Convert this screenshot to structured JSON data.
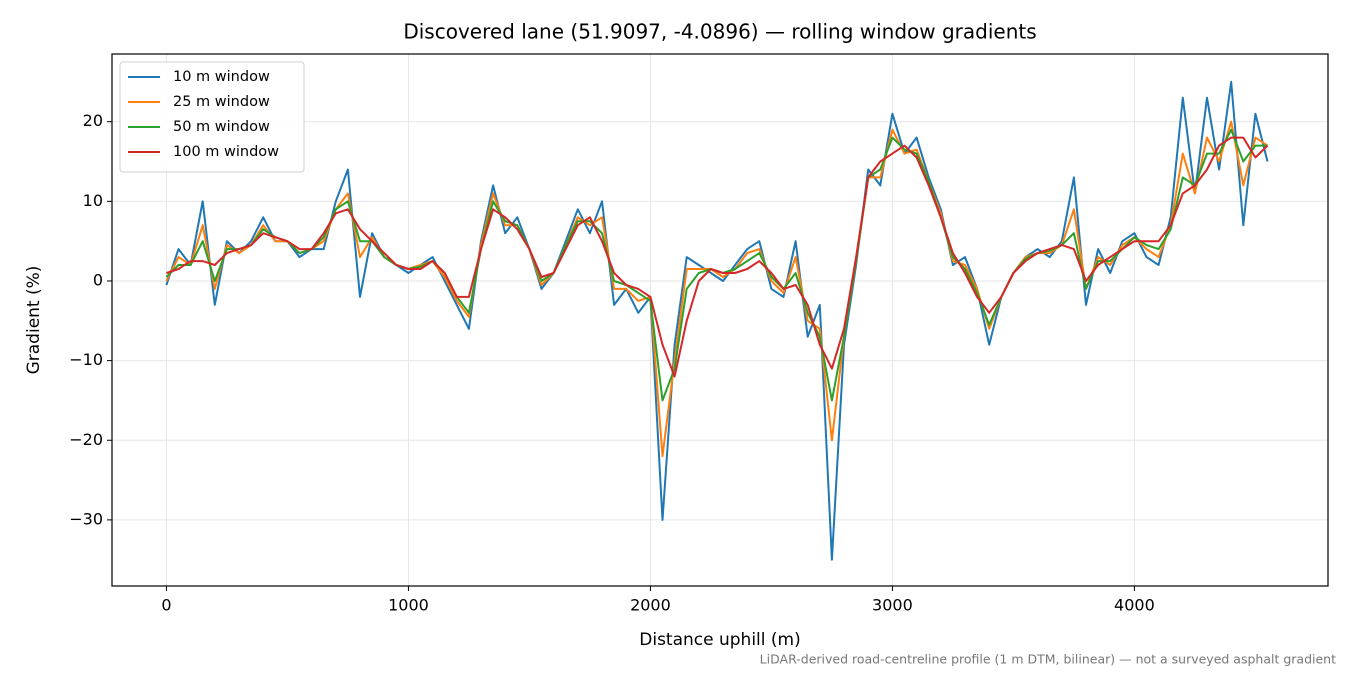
{
  "chart_data": {
    "type": "line",
    "title": "Discovered lane (51.9097, -4.0896) — rolling window gradients",
    "xlabel": "Distance uphill (m)",
    "ylabel": "Gradient (%)",
    "footnote": "LiDAR-derived road-centreline profile (1 m DTM, bilinear) — not a surveyed asphalt gradient",
    "x": [
      0,
      50,
      100,
      150,
      200,
      250,
      300,
      350,
      400,
      450,
      500,
      550,
      600,
      650,
      700,
      750,
      800,
      850,
      900,
      950,
      1000,
      1050,
      1100,
      1150,
      1200,
      1250,
      1300,
      1350,
      1400,
      1450,
      1500,
      1550,
      1600,
      1650,
      1700,
      1750,
      1800,
      1850,
      1900,
      1950,
      2000,
      2050,
      2100,
      2150,
      2200,
      2250,
      2300,
      2350,
      2400,
      2450,
      2500,
      2550,
      2600,
      2650,
      2700,
      2750,
      2800,
      2850,
      2900,
      2950,
      3000,
      3050,
      3100,
      3150,
      3200,
      3250,
      3300,
      3350,
      3400,
      3450,
      3500,
      3550,
      3600,
      3650,
      3700,
      3750,
      3800,
      3850,
      3900,
      3950,
      4000,
      4050,
      4100,
      4150,
      4200,
      4250,
      4300,
      4350,
      4400,
      4450,
      4500,
      4550
    ],
    "series": [
      {
        "name": "10 m window",
        "color": "#1f77b4",
        "values": [
          -0.5,
          4,
          2,
          10,
          -3,
          5,
          3.5,
          5,
          8,
          5,
          5,
          3,
          4,
          4,
          10,
          14,
          -2,
          6,
          3,
          2,
          1,
          2,
          3,
          0,
          -3,
          -6,
          5,
          12,
          6,
          8,
          4,
          -1,
          1,
          5,
          9,
          6,
          10,
          -3,
          -1,
          -4,
          -2,
          -30,
          -8,
          3,
          2,
          1,
          0,
          2,
          4,
          5,
          -1,
          -2,
          5,
          -7,
          -3,
          -35,
          -8,
          2,
          14,
          12,
          21,
          16,
          18,
          13,
          9,
          2,
          3,
          -1,
          -8,
          -2,
          1,
          3,
          4,
          3,
          5,
          13,
          -3,
          4,
          1,
          5,
          6,
          3,
          2,
          8,
          23,
          11,
          23,
          14,
          25,
          7,
          21,
          15
        ]
      },
      {
        "name": "25 m window",
        "color": "#ff7f0e",
        "values": [
          0,
          3,
          2,
          7,
          -1,
          4.5,
          3.5,
          4.5,
          7,
          5,
          5,
          3.5,
          4,
          5,
          9,
          11,
          3,
          5.5,
          3,
          2,
          1.5,
          2,
          2.5,
          0.5,
          -2.5,
          -4.5,
          4.5,
          11,
          7,
          7,
          4,
          -0.5,
          1,
          4.5,
          8,
          7,
          8,
          -1,
          -1,
          -2.5,
          -2,
          -22,
          -10,
          1.5,
          1.5,
          1.5,
          0.5,
          1.5,
          3.5,
          4,
          0,
          -1.5,
          3,
          -5,
          -6,
          -20,
          -7,
          2.5,
          13,
          13,
          19,
          16,
          16.5,
          12.5,
          8.5,
          2.5,
          2,
          -1,
          -6,
          -2,
          1,
          3,
          3.5,
          3.5,
          4.5,
          9,
          -1,
          3,
          2,
          4.5,
          5.5,
          4,
          3,
          7,
          16,
          11,
          18,
          15,
          20,
          12,
          18,
          17
        ]
      },
      {
        "name": "50 m window",
        "color": "#2ca02c",
        "values": [
          0.5,
          2,
          2,
          5,
          0,
          4,
          4,
          4.5,
          6.5,
          5.5,
          5,
          3.5,
          4,
          5.5,
          9,
          10,
          5,
          5,
          3,
          2,
          1.5,
          1.8,
          2.5,
          1,
          -2,
          -4,
          4,
          10,
          7.5,
          7,
          4,
          0,
          1,
          4.5,
          7.5,
          7.5,
          6,
          0,
          -0.5,
          -1.5,
          -2.5,
          -15,
          -11,
          -1,
          1,
          1.5,
          1,
          1.5,
          2.5,
          3.5,
          0.5,
          -1,
          1,
          -4,
          -7,
          -15,
          -7,
          2.5,
          13,
          14,
          18,
          16.5,
          16,
          12.5,
          8,
          3,
          1.5,
          -1.5,
          -5.5,
          -2,
          1,
          2.8,
          3.5,
          3.8,
          4.5,
          6,
          -1,
          2.5,
          2.5,
          4,
          5.5,
          4.5,
          4,
          6.5,
          13,
          12,
          16,
          16,
          19,
          15,
          17,
          17
        ]
      },
      {
        "name": "100 m window",
        "color": "#d62728",
        "values": [
          1,
          1.5,
          2.5,
          2.5,
          2,
          3.5,
          4,
          4.5,
          6,
          5.5,
          5,
          4,
          4,
          6,
          8.5,
          9,
          6.5,
          5,
          3.5,
          2,
          1.5,
          1.5,
          2.5,
          1,
          -2,
          -2,
          4,
          9,
          8,
          6.5,
          4,
          0.5,
          1,
          4,
          7,
          8,
          5,
          1,
          -0.5,
          -1,
          -2,
          -8,
          -12,
          -5,
          0,
          1.5,
          1,
          1,
          1.5,
          2.5,
          1,
          -1,
          -0.5,
          -3,
          -8,
          -11,
          -6,
          3,
          13,
          15,
          16,
          17,
          15.5,
          12,
          8,
          3.5,
          1,
          -2,
          -4,
          -2,
          1,
          2.5,
          3.5,
          4,
          4.5,
          4,
          0,
          2,
          3,
          4,
          5,
          5,
          5,
          7,
          11,
          12,
          14,
          17,
          18,
          18,
          15.5,
          17
        ]
      }
    ],
    "xlim": [
      -225,
      4800
    ],
    "ylim": [
      -38.3,
      28.5
    ],
    "xticks": [
      0,
      1000,
      2000,
      3000,
      4000
    ],
    "yticks": [
      -30,
      -20,
      -10,
      0,
      10,
      20
    ],
    "yticklabels": [
      "−30",
      "−20",
      "−10",
      "0",
      "10",
      "20"
    ],
    "grid": true,
    "legend": "upper left"
  }
}
